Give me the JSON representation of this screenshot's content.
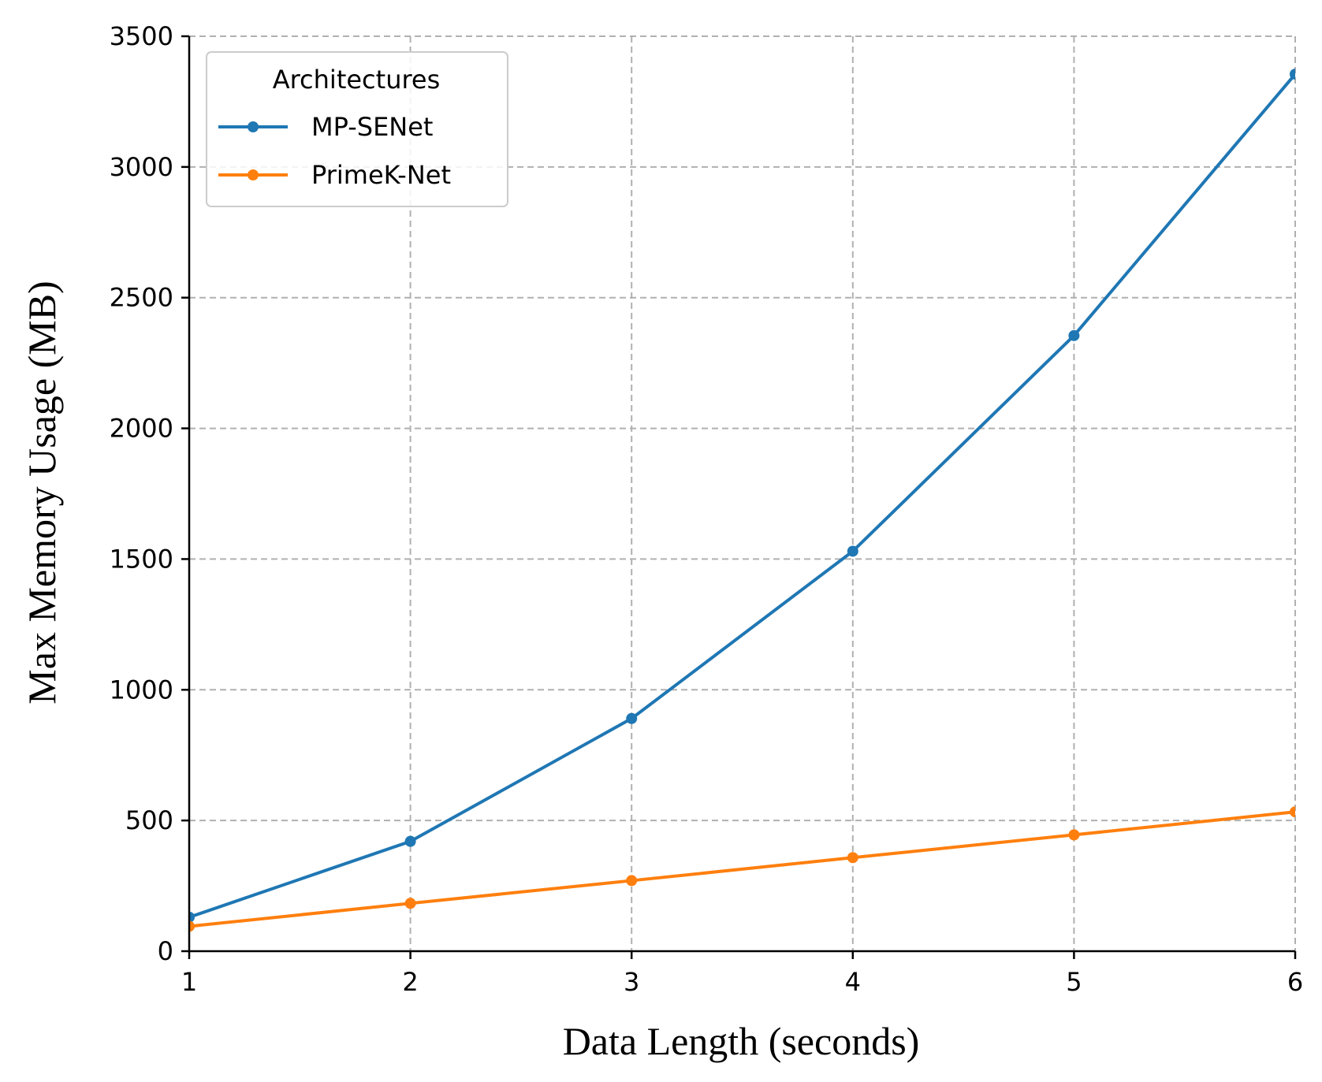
{
  "chart_data": {
    "type": "line",
    "title": "",
    "xlabel": "Data Length (seconds)",
    "ylabel": "Max Memory Usage (MB)",
    "xlim": [
      1,
      6
    ],
    "ylim": [
      0,
      3500
    ],
    "x_ticks": [
      "1",
      "2",
      "3",
      "4",
      "5",
      "6"
    ],
    "y_ticks": [
      "0",
      "500",
      "1000",
      "1500",
      "2000",
      "2500",
      "3000",
      "3500"
    ],
    "grid": true,
    "legend": {
      "title": "Architectures",
      "placement": "top-left"
    },
    "x": [
      1,
      2,
      3,
      4,
      5,
      6
    ],
    "series": [
      {
        "name": "MP-SENet",
        "color": "#1f77b4",
        "marker": "circle",
        "values": [
          130,
          420,
          890,
          1530,
          2355,
          3355
        ]
      },
      {
        "name": "PrimeK-Net",
        "color": "#ff7f0e",
        "marker": "circle",
        "values": [
          95,
          183,
          270,
          358,
          445,
          533
        ]
      }
    ]
  }
}
